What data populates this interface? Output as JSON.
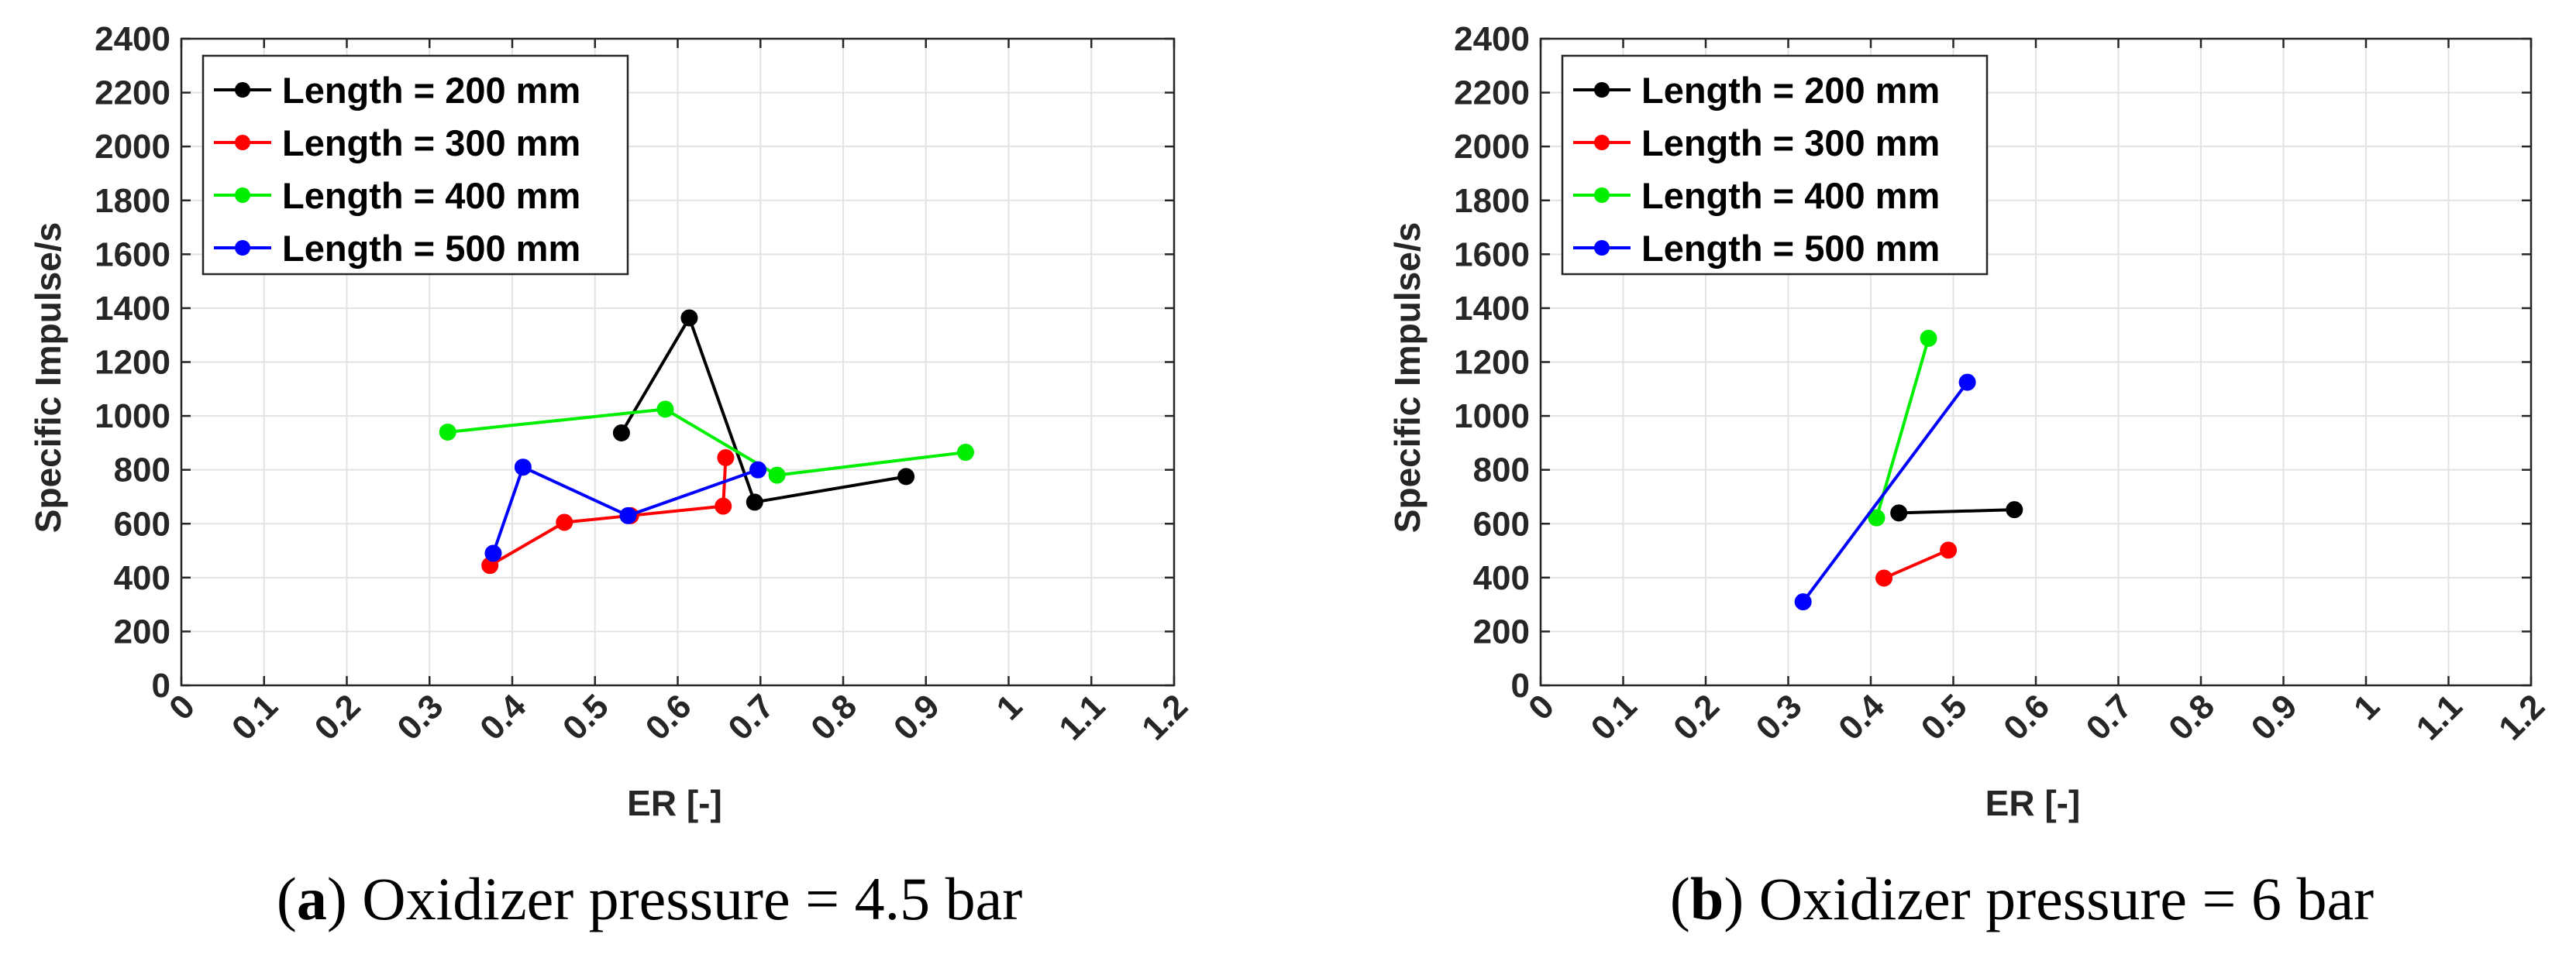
{
  "chart_data": [
    {
      "type": "line",
      "title": "",
      "xlabel": "ER [-]",
      "ylabel": "Specific Impulse/s",
      "xlim": [
        0,
        1.2
      ],
      "ylim": [
        0,
        2400
      ],
      "xticks": [
        "0",
        "0.1",
        "0.2",
        "0.3",
        "0.4",
        "0.5",
        "0.6",
        "0.7",
        "0.8",
        "0.9",
        "1",
        "1.1",
        "1.2"
      ],
      "yticks": [
        "0",
        "200",
        "400",
        "600",
        "800",
        "1000",
        "1200",
        "1400",
        "1600",
        "1800",
        "2000",
        "2200",
        "2400"
      ],
      "grid": true,
      "legend_position": "top-left",
      "caption": {
        "letter": "a",
        "text": "Oxidizer pressure = 4.5 bar"
      },
      "series": [
        {
          "name": "Length = 200 mm",
          "color": "#000000",
          "x": [
            0.532,
            0.614,
            0.693,
            0.876
          ],
          "y": [
            937,
            1364,
            680,
            775
          ]
        },
        {
          "name": "Length = 300 mm",
          "color": "#ff0000",
          "x": [
            0.373,
            0.463,
            0.543,
            0.655,
            0.658
          ],
          "y": [
            445,
            605,
            630,
            665,
            845
          ]
        },
        {
          "name": "Length = 400 mm",
          "color": "#00ee00",
          "x": [
            0.322,
            0.585,
            0.72,
            0.948
          ],
          "y": [
            940,
            1025,
            780,
            865
          ]
        },
        {
          "name": "Length = 500 mm",
          "color": "#0000ff",
          "x": [
            0.377,
            0.413,
            0.54,
            0.697
          ],
          "y": [
            490,
            810,
            630,
            800
          ]
        }
      ]
    },
    {
      "type": "line",
      "title": "",
      "xlabel": "ER [-]",
      "ylabel": "Specific Impulse/s",
      "xlim": [
        0,
        1.2
      ],
      "ylim": [
        0,
        2400
      ],
      "xticks": [
        "0",
        "0.1",
        "0.2",
        "0.3",
        "0.4",
        "0.5",
        "0.6",
        "0.7",
        "0.8",
        "0.9",
        "1",
        "1.1",
        "1.2"
      ],
      "yticks": [
        "0",
        "200",
        "400",
        "600",
        "800",
        "1000",
        "1200",
        "1400",
        "1600",
        "1800",
        "2000",
        "2200",
        "2400"
      ],
      "grid": true,
      "legend_position": "top-left",
      "caption": {
        "letter": "b",
        "text": "Oxidizer pressure = 6 bar"
      },
      "series": [
        {
          "name": "Length = 200 mm",
          "color": "#000000",
          "x": [
            0.434,
            0.574
          ],
          "y": [
            640,
            652
          ]
        },
        {
          "name": "Length = 300 mm",
          "color": "#ff0000",
          "x": [
            0.416,
            0.494
          ],
          "y": [
            398,
            502
          ]
        },
        {
          "name": "Length = 400 mm",
          "color": "#00ee00",
          "x": [
            0.407,
            0.47
          ],
          "y": [
            622,
            1288
          ]
        },
        {
          "name": "Length = 500 mm",
          "color": "#0000ff",
          "x": [
            0.318,
            0.517
          ],
          "y": [
            310,
            1125
          ]
        }
      ]
    }
  ]
}
